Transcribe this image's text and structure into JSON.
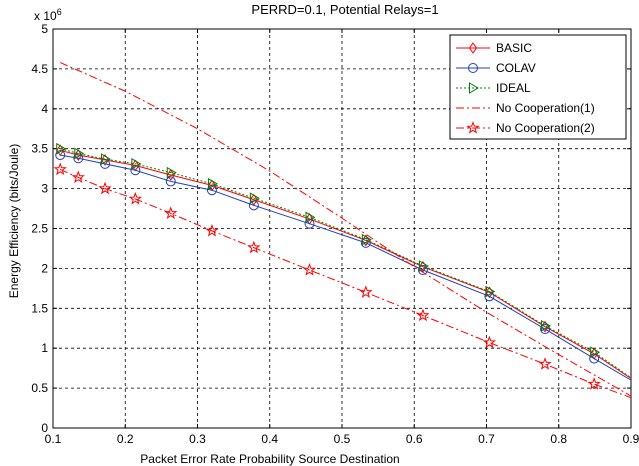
{
  "chart_data": {
    "type": "line",
    "title": "PERRD=0.1, Potential Relays=1",
    "xlabel": "Packet Error Rate Probability Source Destination",
    "ylabel": "Energy Efficiency (bits/Joule)",
    "y_multiplier_base": "x 10",
    "y_multiplier_exp": "6",
    "xlim": [
      0.1,
      0.9
    ],
    "ylim": [
      0,
      5
    ],
    "x_ticks": [
      "0.1",
      "0.2",
      "0.3",
      "0.4",
      "0.5",
      "0.6",
      "0.7",
      "0.8",
      "0.9"
    ],
    "y_ticks": [
      "0",
      "0.5",
      "1",
      "1.5",
      "2",
      "2.5",
      "3",
      "3.5",
      "4",
      "4.5",
      "5"
    ],
    "grid": true,
    "legend_position": "top-right",
    "series": [
      {
        "name": "BASIC",
        "color": "#ff0000",
        "line": "solid",
        "marker": "diamond",
        "x": [
          0.11,
          0.135,
          0.172,
          0.214,
          0.263,
          0.32,
          0.378,
          0.455,
          0.533,
          0.612,
          0.704,
          0.781,
          0.849,
          0.9
        ],
        "y": [
          3.48,
          3.42,
          3.36,
          3.29,
          3.17,
          3.04,
          2.86,
          2.62,
          2.35,
          2.02,
          1.7,
          1.27,
          0.93,
          0.62
        ]
      },
      {
        "name": "COLAV",
        "color": "#1f3fbf",
        "line": "solid",
        "marker": "circle",
        "x": [
          0.11,
          0.135,
          0.172,
          0.214,
          0.263,
          0.32,
          0.378,
          0.455,
          0.533,
          0.612,
          0.704,
          0.781,
          0.849,
          0.9
        ],
        "y": [
          3.42,
          3.38,
          3.31,
          3.23,
          3.09,
          2.98,
          2.79,
          2.56,
          2.32,
          1.98,
          1.65,
          1.24,
          0.87,
          0.6
        ]
      },
      {
        "name": "IDEAL",
        "color": "#008000",
        "line": "dotted",
        "marker": "triangle-right",
        "x": [
          0.11,
          0.135,
          0.172,
          0.214,
          0.263,
          0.32,
          0.378,
          0.455,
          0.533,
          0.612,
          0.704,
          0.781,
          0.849,
          0.9
        ],
        "y": [
          3.5,
          3.44,
          3.37,
          3.31,
          3.2,
          3.06,
          2.88,
          2.64,
          2.36,
          2.03,
          1.71,
          1.28,
          0.95,
          0.63
        ]
      },
      {
        "name": "No Cooperation(1)",
        "color": "#ff0000",
        "line": "dashdot",
        "marker": "none",
        "x": [
          0.11,
          0.2,
          0.3,
          0.4,
          0.5,
          0.6,
          0.7,
          0.8,
          0.9
        ],
        "y": [
          4.58,
          4.22,
          3.75,
          3.22,
          2.63,
          2.02,
          1.45,
          0.92,
          0.4
        ]
      },
      {
        "name": "No Cooperation(2)",
        "color": "#ff0000",
        "line": "dashdot",
        "marker": "star",
        "x": [
          0.11,
          0.135,
          0.172,
          0.214,
          0.263,
          0.32,
          0.378,
          0.455,
          0.533,
          0.612,
          0.704,
          0.781,
          0.849,
          0.9
        ],
        "y": [
          3.24,
          3.14,
          3.0,
          2.87,
          2.69,
          2.47,
          2.26,
          1.98,
          1.7,
          1.41,
          1.07,
          0.8,
          0.55,
          0.38
        ]
      }
    ]
  }
}
